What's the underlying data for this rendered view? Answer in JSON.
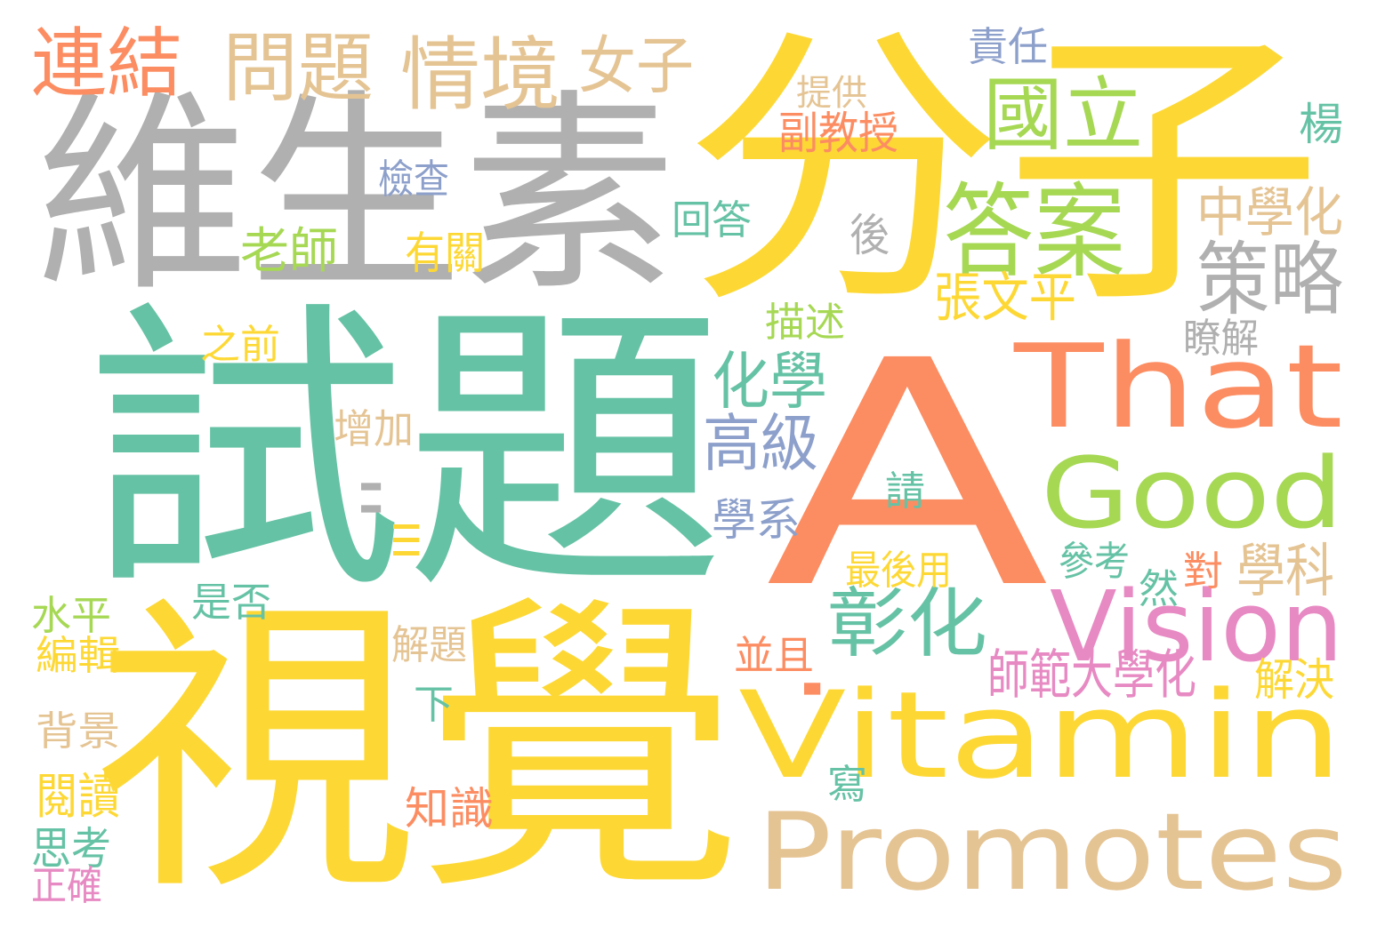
{
  "palette": {
    "yellow": "#FDD835",
    "gray": "#B0B0B0",
    "teal": "#66C2A5",
    "orange": "#FC8D62",
    "green": "#A6D854",
    "tan": "#E5C494",
    "purple": "#8DA0CB",
    "pink": "#E78AC3"
  },
  "words": [
    {
      "key": "fenzi",
      "text": "分子",
      "color": "yellow"
    },
    {
      "key": "a",
      "text": "A",
      "color": "orange"
    },
    {
      "key": "weishengsu",
      "text": "維生素",
      "color": "gray"
    },
    {
      "key": "shiti",
      "text": "試題",
      "color": "teal"
    },
    {
      "key": "shijue",
      "text": "視覺",
      "color": "yellow"
    },
    {
      "key": "that",
      "text": "That",
      "color": "orange"
    },
    {
      "key": "good",
      "text": "Good",
      "color": "green"
    },
    {
      "key": "vision",
      "text": "Vision",
      "color": "pink"
    },
    {
      "key": "vitamin",
      "text": "Vitamin",
      "color": "yellow"
    },
    {
      "key": "promotes",
      "text": "Promotes",
      "color": "tan"
    },
    {
      "key": "lianjie",
      "text": "連結",
      "color": "orange"
    },
    {
      "key": "wenti",
      "text": "問題",
      "color": "tan"
    },
    {
      "key": "qingjing",
      "text": "情境",
      "color": "tan"
    },
    {
      "key": "nuzi",
      "text": "女子",
      "color": "tan"
    },
    {
      "key": "guoli",
      "text": "國立",
      "color": "green"
    },
    {
      "key": "daan",
      "text": "答案",
      "color": "green"
    },
    {
      "key": "celue",
      "text": "策略",
      "color": "gray"
    },
    {
      "key": "zhongxuehua",
      "text": "中學化",
      "color": "tan"
    },
    {
      "key": "zhangwenping",
      "text": "張文平",
      "color": "yellow"
    },
    {
      "key": "huaxue",
      "text": "化學",
      "color": "teal"
    },
    {
      "key": "gaoji",
      "text": "高級",
      "color": "purple"
    },
    {
      "key": "zhanghua",
      "text": "彰化",
      "color": "teal"
    },
    {
      "key": "xuexi",
      "text": "學系",
      "color": "purple"
    },
    {
      "key": "xueke",
      "text": "學科",
      "color": "tan"
    },
    {
      "key": "shifan",
      "text": "師範大學化",
      "color": "pink"
    },
    {
      "key": "jiejue",
      "text": "解決",
      "color": "yellow"
    },
    {
      "key": "zeren",
      "text": "責任",
      "color": "purple"
    },
    {
      "key": "tigong",
      "text": "提供",
      "color": "tan"
    },
    {
      "key": "fujiaoshou",
      "text": "副教授",
      "color": "orange"
    },
    {
      "key": "yang",
      "text": "楊",
      "color": "teal"
    },
    {
      "key": "jiancha",
      "text": "檢查",
      "color": "purple"
    },
    {
      "key": "huida",
      "text": "回答",
      "color": "teal"
    },
    {
      "key": "hou",
      "text": "後",
      "color": "gray"
    },
    {
      "key": "laoshi",
      "text": "老師",
      "color": "green"
    },
    {
      "key": "youguan",
      "text": "有關",
      "color": "yellow"
    },
    {
      "key": "miaoshu",
      "text": "描述",
      "color": "green"
    },
    {
      "key": "liaojie",
      "text": "瞭解",
      "color": "gray"
    },
    {
      "key": "zhiqian",
      "text": "之前",
      "color": "yellow"
    },
    {
      "key": "zengjia",
      "text": "增加",
      "color": "tan"
    },
    {
      "key": "qing",
      "text": "請",
      "color": "teal"
    },
    {
      "key": "ii",
      "text": "II",
      "color": "gray"
    },
    {
      "key": "iii",
      "text": "III",
      "color": "yellow"
    },
    {
      "key": "zuihouyong",
      "text": "最後用",
      "color": "yellow"
    },
    {
      "key": "cankao",
      "text": "參考",
      "color": "teal"
    },
    {
      "key": "dui",
      "text": "對",
      "color": "orange"
    },
    {
      "key": "ran",
      "text": "然",
      "color": "teal"
    },
    {
      "key": "shifou",
      "text": "是否",
      "color": "teal"
    },
    {
      "key": "shuiping",
      "text": "水平",
      "color": "green"
    },
    {
      "key": "bianji",
      "text": "編輯",
      "color": "yellow"
    },
    {
      "key": "jieti",
      "text": "解題",
      "color": "tan"
    },
    {
      "key": "bingqie",
      "text": "並且",
      "color": "orange"
    },
    {
      "key": "i",
      "text": "I",
      "color": "orange"
    },
    {
      "key": "xia",
      "text": "下",
      "color": "teal"
    },
    {
      "key": "beijing",
      "text": "背景",
      "color": "tan"
    },
    {
      "key": "xie",
      "text": "寫",
      "color": "teal"
    },
    {
      "key": "yuedu",
      "text": "閱讀",
      "color": "yellow"
    },
    {
      "key": "zhishi",
      "text": "知識",
      "color": "orange"
    },
    {
      "key": "sikao",
      "text": "思考",
      "color": "teal"
    },
    {
      "key": "zhengque",
      "text": "正確",
      "color": "pink"
    }
  ]
}
